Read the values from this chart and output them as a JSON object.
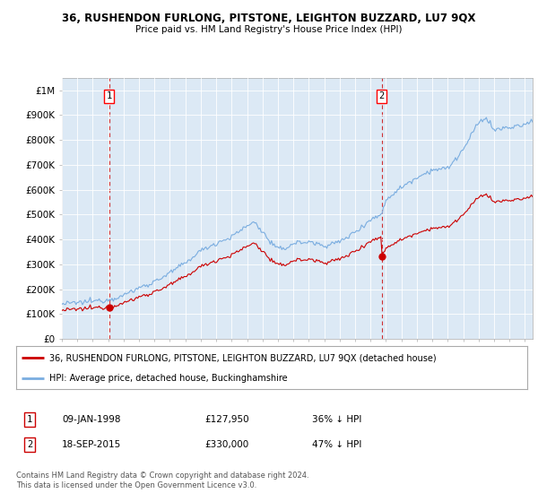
{
  "title": "36, RUSHENDON FURLONG, PITSTONE, LEIGHTON BUZZARD, LU7 9QX",
  "subtitle": "Price paid vs. HM Land Registry's House Price Index (HPI)",
  "ylim": [
    0,
    1050000
  ],
  "xlim_start": 1995.0,
  "xlim_end": 2025.5,
  "yticks": [
    0,
    100000,
    200000,
    300000,
    400000,
    500000,
    600000,
    700000,
    800000,
    900000,
    1000000
  ],
  "ytick_labels": [
    "£0",
    "£100K",
    "£200K",
    "£300K",
    "£400K",
    "£500K",
    "£600K",
    "£700K",
    "£800K",
    "£900K",
    "£1M"
  ],
  "xtick_years": [
    1995,
    1996,
    1997,
    1998,
    1999,
    2000,
    2001,
    2002,
    2003,
    2004,
    2005,
    2006,
    2007,
    2008,
    2009,
    2010,
    2011,
    2012,
    2013,
    2014,
    2015,
    2016,
    2017,
    2018,
    2019,
    2020,
    2021,
    2022,
    2023,
    2024,
    2025
  ],
  "purchase1_date": 1998.05,
  "purchase1_price": 127950,
  "purchase1_label": "1",
  "purchase2_date": 2015.72,
  "purchase2_price": 330000,
  "purchase2_label": "2",
  "legend_line1": "36, RUSHENDON FURLONG, PITSTONE, LEIGHTON BUZZARD, LU7 9QX (detached house)",
  "legend_line2": "HPI: Average price, detached house, Buckinghamshire",
  "table_row1_num": "1",
  "table_row1_date": "09-JAN-1998",
  "table_row1_price": "£127,950",
  "table_row1_hpi": "36% ↓ HPI",
  "table_row2_num": "2",
  "table_row2_date": "18-SEP-2015",
  "table_row2_price": "£330,000",
  "table_row2_hpi": "47% ↓ HPI",
  "footnote": "Contains HM Land Registry data © Crown copyright and database right 2024.\nThis data is licensed under the Open Government Licence v3.0.",
  "red_line_color": "#cc0000",
  "blue_line_color": "#7aade0",
  "chart_bg_color": "#dce9f5",
  "grid_color": "#ffffff",
  "bg_color": "#ffffff"
}
